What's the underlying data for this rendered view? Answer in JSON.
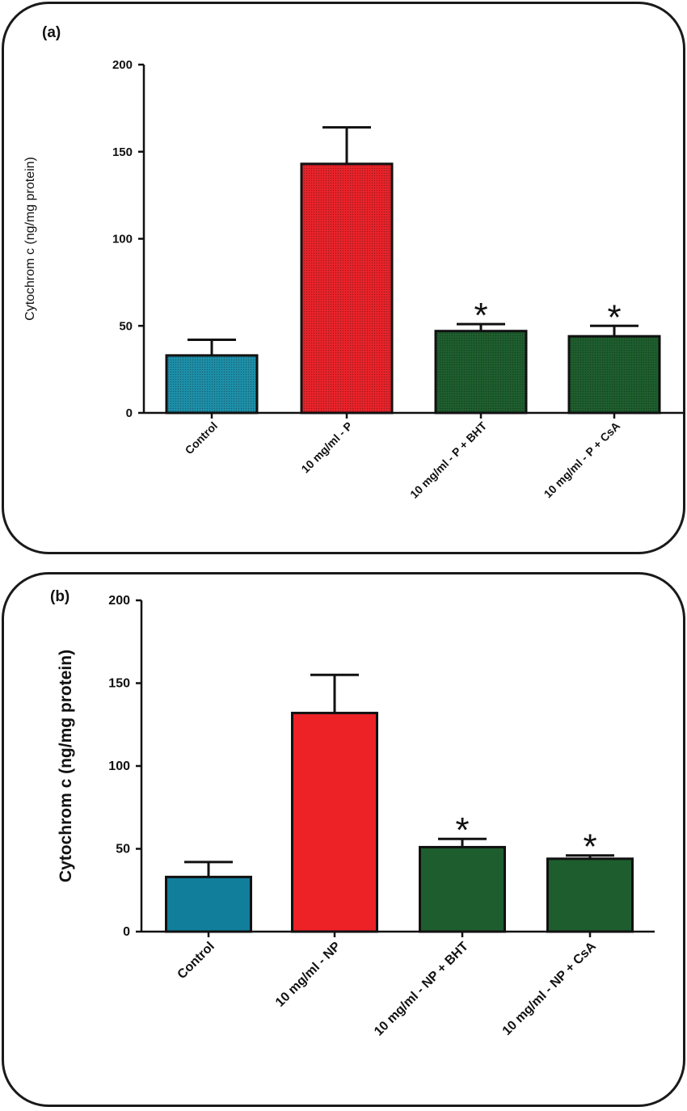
{
  "chart_data": [
    {
      "type": "bar",
      "panel_label": "(a)",
      "ylabel": "Cytochrom c (ng/mg protein)",
      "ylim": [
        0,
        200
      ],
      "yticks": [
        0,
        50,
        100,
        150,
        200
      ],
      "categories": [
        "Control",
        "10 mg/ml - P",
        "10 mg/ml - P + BHT",
        "10 mg/ml - P + CsA"
      ],
      "values": [
        33,
        143,
        47,
        44
      ],
      "errors": [
        9,
        21,
        4,
        6
      ],
      "significance": [
        "",
        "",
        "*",
        "*"
      ],
      "bar_colors": [
        "#1e8fa8",
        "#e8232a",
        "#1e5e2e",
        "#1e5e2e"
      ],
      "dotted_fill": true
    },
    {
      "type": "bar",
      "panel_label": "(b)",
      "ylabel": "Cytochrom c (ng/mg protein)",
      "ylim": [
        0,
        200
      ],
      "yticks": [
        0,
        50,
        100,
        150,
        200
      ],
      "categories": [
        "Control",
        "10 mg/ml - NP",
        "10 mg/ml - NP + BHT",
        "10 mg/ml - NP + CsA"
      ],
      "values": [
        33,
        132,
        51,
        44
      ],
      "errors": [
        9,
        23,
        5,
        2
      ],
      "significance": [
        "",
        "",
        "*",
        "*"
      ],
      "bar_colors": [
        "#117e9c",
        "#ec2227",
        "#1e5e2e",
        "#1e5e2e"
      ],
      "dotted_fill": false
    }
  ]
}
